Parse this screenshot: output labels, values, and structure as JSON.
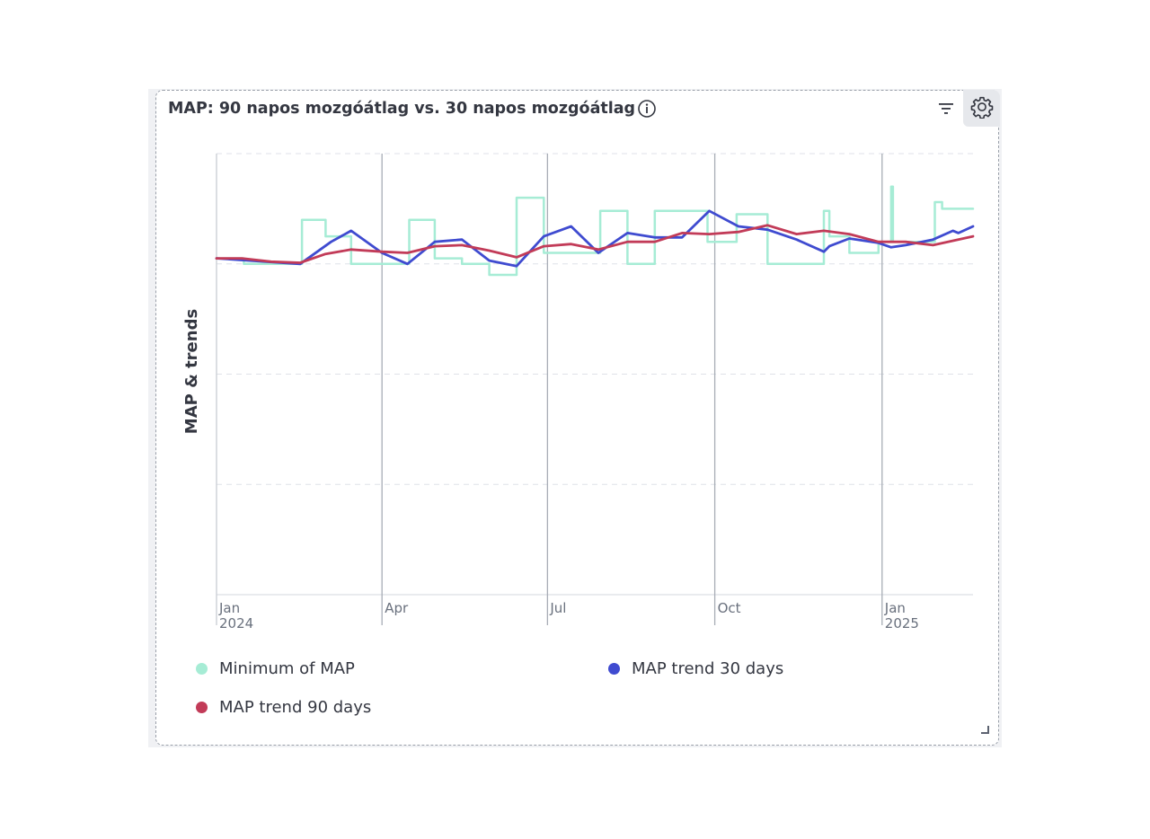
{
  "panel": {
    "title": "MAP: 90 napos mozgóátlag vs. 30 napos mozgóátlag"
  },
  "colors": {
    "minimum": "#a6ecd5",
    "trend30": "#3f4bd0",
    "trend90": "#c23b58"
  },
  "chart_data": {
    "type": "line",
    "ylabel": "MAP & trends",
    "xlim": [
      "2024-01-01",
      "2025-02-20"
    ],
    "ylim": [
      0,
      4
    ],
    "grid": true,
    "legend_position": "bottom",
    "x_ticks": [
      {
        "date": "2024-01-01",
        "label": "Jan",
        "sublabel": "2024"
      },
      {
        "date": "2024-04-01",
        "label": "Apr",
        "sublabel": ""
      },
      {
        "date": "2024-07-01",
        "label": "Jul",
        "sublabel": ""
      },
      {
        "date": "2024-10-01",
        "label": "Oct",
        "sublabel": ""
      },
      {
        "date": "2025-01-01",
        "label": "Jan",
        "sublabel": "2025"
      }
    ],
    "series": [
      {
        "name": "Minimum of MAP",
        "key": "minimum",
        "step": true,
        "points": [
          [
            "2024-01-01",
            3.05
          ],
          [
            "2024-01-16",
            3.0
          ],
          [
            "2024-02-16",
            3.0
          ],
          [
            "2024-02-17",
            3.4
          ],
          [
            "2024-03-01",
            3.25
          ],
          [
            "2024-03-14",
            3.25
          ],
          [
            "2024-03-15",
            3.0
          ],
          [
            "2024-04-15",
            3.0
          ],
          [
            "2024-04-16",
            3.4
          ],
          [
            "2024-04-30",
            3.05
          ],
          [
            "2024-05-15",
            3.0
          ],
          [
            "2024-05-30",
            2.9
          ],
          [
            "2024-06-14",
            3.6
          ],
          [
            "2024-06-29",
            3.1
          ],
          [
            "2024-07-29",
            3.1
          ],
          [
            "2024-07-30",
            3.48
          ],
          [
            "2024-08-14",
            3.0
          ],
          [
            "2024-08-29",
            3.48
          ],
          [
            "2024-09-27",
            3.2
          ],
          [
            "2024-10-13",
            3.45
          ],
          [
            "2024-10-30",
            3.0
          ],
          [
            "2024-11-15",
            3.0
          ],
          [
            "2024-11-30",
            3.48
          ],
          [
            "2024-12-03",
            3.25
          ],
          [
            "2024-12-14",
            3.1
          ],
          [
            "2024-12-30",
            3.2
          ],
          [
            "2025-01-05",
            3.2
          ],
          [
            "2025-01-06",
            3.7
          ],
          [
            "2025-01-07",
            3.2
          ],
          [
            "2025-01-29",
            3.2
          ],
          [
            "2025-01-30",
            3.56
          ],
          [
            "2025-02-03",
            3.5
          ],
          [
            "2025-02-20",
            3.5
          ]
        ]
      },
      {
        "name": "MAP trend 30 days",
        "key": "trend30",
        "step": false,
        "points": [
          [
            "2024-01-01",
            3.05
          ],
          [
            "2024-02-16",
            3.0
          ],
          [
            "2024-03-04",
            3.2
          ],
          [
            "2024-03-15",
            3.3
          ],
          [
            "2024-04-01",
            3.1
          ],
          [
            "2024-04-15",
            3.0
          ],
          [
            "2024-04-30",
            3.2
          ],
          [
            "2024-05-15",
            3.22
          ],
          [
            "2024-05-30",
            3.03
          ],
          [
            "2024-06-14",
            2.98
          ],
          [
            "2024-06-29",
            3.25
          ],
          [
            "2024-07-14",
            3.34
          ],
          [
            "2024-07-29",
            3.1
          ],
          [
            "2024-08-14",
            3.28
          ],
          [
            "2024-08-29",
            3.24
          ],
          [
            "2024-09-13",
            3.24
          ],
          [
            "2024-09-28",
            3.48
          ],
          [
            "2024-10-14",
            3.34
          ],
          [
            "2024-10-30",
            3.31
          ],
          [
            "2024-11-15",
            3.22
          ],
          [
            "2024-11-30",
            3.11
          ],
          [
            "2024-12-03",
            3.16
          ],
          [
            "2024-12-14",
            3.23
          ],
          [
            "2024-12-30",
            3.19
          ],
          [
            "2025-01-06",
            3.15
          ],
          [
            "2025-01-14",
            3.17
          ],
          [
            "2025-01-29",
            3.22
          ],
          [
            "2025-02-09",
            3.3
          ],
          [
            "2025-02-12",
            3.28
          ],
          [
            "2025-02-20",
            3.34
          ]
        ]
      },
      {
        "name": "MAP trend 90 days",
        "key": "trend90",
        "step": false,
        "points": [
          [
            "2024-01-01",
            3.05
          ],
          [
            "2024-01-15",
            3.05
          ],
          [
            "2024-01-31",
            3.02
          ],
          [
            "2024-02-16",
            3.01
          ],
          [
            "2024-03-01",
            3.09
          ],
          [
            "2024-03-15",
            3.13
          ],
          [
            "2024-04-01",
            3.11
          ],
          [
            "2024-04-15",
            3.1
          ],
          [
            "2024-04-30",
            3.16
          ],
          [
            "2024-05-15",
            3.17
          ],
          [
            "2024-05-30",
            3.12
          ],
          [
            "2024-06-14",
            3.06
          ],
          [
            "2024-06-29",
            3.16
          ],
          [
            "2024-07-14",
            3.18
          ],
          [
            "2024-07-29",
            3.13
          ],
          [
            "2024-08-14",
            3.2
          ],
          [
            "2024-08-29",
            3.2
          ],
          [
            "2024-09-13",
            3.28
          ],
          [
            "2024-09-28",
            3.27
          ],
          [
            "2024-10-14",
            3.29
          ],
          [
            "2024-10-30",
            3.35
          ],
          [
            "2024-11-15",
            3.27
          ],
          [
            "2024-11-30",
            3.3
          ],
          [
            "2024-12-14",
            3.27
          ],
          [
            "2024-12-30",
            3.2
          ],
          [
            "2025-01-14",
            3.2
          ],
          [
            "2025-01-29",
            3.17
          ],
          [
            "2025-02-20",
            3.25
          ]
        ]
      }
    ]
  }
}
